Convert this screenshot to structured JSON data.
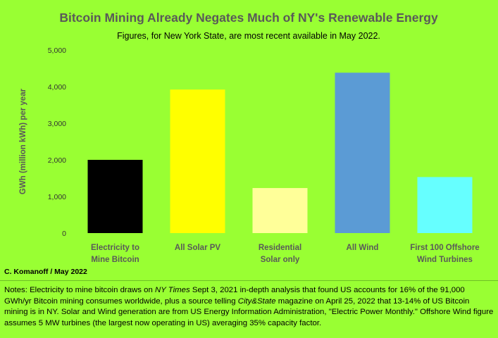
{
  "chart_data": {
    "type": "bar",
    "title": "Bitcoin Mining Already Negates Much of NY's Renewable Energy",
    "subtitle": "Figures, for New York State, are most recent available in May 2022.",
    "ylabel": "GWh (million kWh) per year",
    "ylim": [
      0,
      5000
    ],
    "yticks": [
      0,
      1000,
      2000,
      3000,
      4000,
      5000
    ],
    "ytick_labels": [
      "0",
      "1,000",
      "2,000",
      "3,000",
      "4,000",
      "5,000"
    ],
    "grid": false,
    "categories": [
      [
        "Electricity to",
        "Mine Bitcoin"
      ],
      [
        "All Solar PV"
      ],
      [
        "Residential",
        "Solar only"
      ],
      [
        "All Wind"
      ],
      [
        "First 100 Offshore",
        "Wind Turbines"
      ]
    ],
    "values": [
      2000,
      3920,
      1230,
      4380,
      1530
    ],
    "colors": [
      "#000000",
      "#ffff00",
      "#ffff99",
      "#5b9bd5",
      "#66ffff"
    ],
    "credit": "C. Komanoff / May 2022"
  },
  "notes": {
    "p1": "Notes: Electricity to mine bitcoin draws on ",
    "nyt": "NY Times",
    "p2": " Sept 3, 2021 in-depth analysis that found US accounts for 16% of the 91,000 GWh/yr Bitcoin mining consumes worldwide, plus a source telling ",
    "cs": "City&State",
    "p3": " magazine on April 25, 2022 that 13-14% of US Bitcoin mining is in NY. Solar and Wind generation are from US Energy Information Administration, \"Electric Power Monthly.\" Offshore Wind figure assumes 5 MW turbines (the largest now operating in US) averaging 35% capacity factor."
  }
}
